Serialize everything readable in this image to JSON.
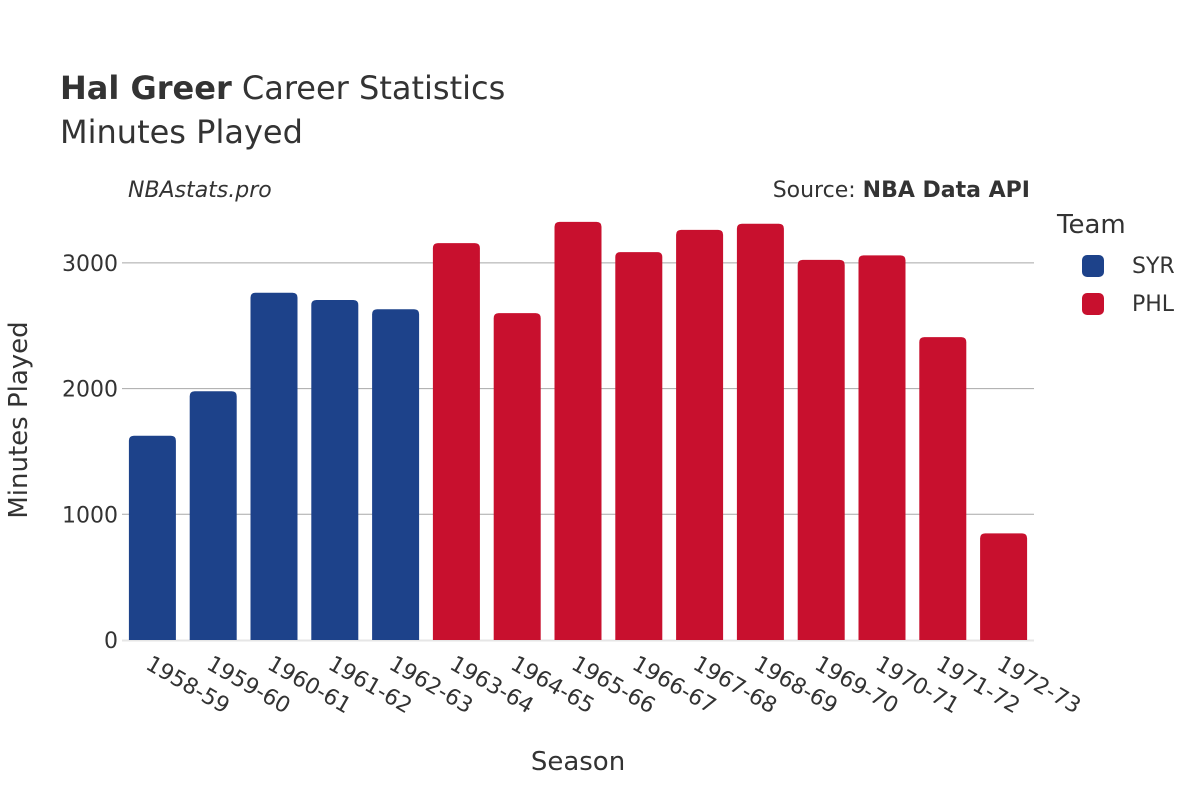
{
  "header": {
    "player": "Hal Greer",
    "title_rest": " Career Statistics",
    "subtitle": "Minutes Played",
    "watermark": "NBAstats.pro",
    "source_prefix": "Source: ",
    "source_name": "NBA Data API"
  },
  "legend": {
    "title": "Team",
    "items": [
      {
        "label": "SYR",
        "color": "#1d428a"
      },
      {
        "label": "PHL",
        "color": "#c8102e"
      }
    ]
  },
  "chart_data": {
    "type": "bar",
    "title": "Hal Greer Career Statistics",
    "subtitle": "Minutes Played",
    "xlabel": "Season",
    "ylabel": "Minutes Played",
    "ylim": [
      0,
      3500
    ],
    "yticks": [
      0,
      1000,
      2000,
      3000
    ],
    "grid": true,
    "legend_position": "right",
    "categories": [
      "1958-59",
      "1959-60",
      "1960-61",
      "1961-62",
      "1962-63",
      "1963-64",
      "1964-65",
      "1965-66",
      "1966-67",
      "1967-68",
      "1968-69",
      "1969-70",
      "1970-71",
      "1971-72",
      "1972-73"
    ],
    "values": [
      1625,
      1979,
      2763,
      2705,
      2631,
      3157,
      2600,
      3326,
      3086,
      3263,
      3311,
      3024,
      3060,
      2410,
      848
    ],
    "teams": [
      "SYR",
      "SYR",
      "SYR",
      "SYR",
      "SYR",
      "PHL",
      "PHL",
      "PHL",
      "PHL",
      "PHL",
      "PHL",
      "PHL",
      "PHL",
      "PHL",
      "PHL"
    ],
    "colors": {
      "SYR": "#1d428a",
      "PHL": "#c8102e"
    }
  }
}
